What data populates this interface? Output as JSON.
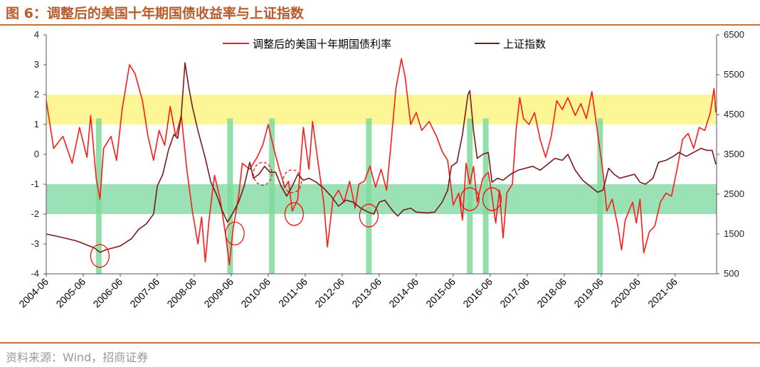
{
  "figure": {
    "title": "图 6：调整后的美国十年期国债收益率与上证指数",
    "source": "资料来源：Wind，招商证券"
  },
  "chart_data": {
    "type": "line",
    "x_ticks": [
      "2004-06",
      "2005-06",
      "2006-06",
      "2007-06",
      "2008-06",
      "2009-06",
      "2010-06",
      "2011-06",
      "2012-06",
      "2013-06",
      "2014-06",
      "2015-06",
      "2016-06",
      "2017-06",
      "2018-06",
      "2019-06",
      "2020-06",
      "2021-06"
    ],
    "y_left": {
      "ticks": [
        "4",
        "3",
        "2",
        "1",
        "0",
        "-1",
        "-2",
        "-3",
        "-4"
      ],
      "range": [
        -4,
        4
      ]
    },
    "y_right": {
      "ticks": [
        "6500",
        "5500",
        "4500",
        "3500",
        "2500",
        "1500",
        "500"
      ],
      "range": [
        500,
        6500
      ]
    },
    "legend": "top-center",
    "series": [
      {
        "name": "调整后的美国十年期国债利率",
        "axis": "left",
        "color": "#ff1a1a",
        "points": [
          [
            2004.0,
            1.8
          ],
          [
            2004.2,
            0.2
          ],
          [
            2004.45,
            0.6
          ],
          [
            2004.7,
            -0.3
          ],
          [
            2004.9,
            0.9
          ],
          [
            2005.1,
            -0.1
          ],
          [
            2005.2,
            1.3
          ],
          [
            2005.35,
            -0.8
          ],
          [
            2005.45,
            -1.5
          ],
          [
            2005.55,
            0.2
          ],
          [
            2005.75,
            0.6
          ],
          [
            2005.9,
            -0.2
          ],
          [
            2006.05,
            1.5
          ],
          [
            2006.25,
            3.0
          ],
          [
            2006.4,
            2.7
          ],
          [
            2006.6,
            1.8
          ],
          [
            2006.75,
            0.6
          ],
          [
            2006.9,
            -0.2
          ],
          [
            2007.05,
            0.8
          ],
          [
            2007.2,
            0.3
          ],
          [
            2007.35,
            1.6
          ],
          [
            2007.5,
            0.6
          ],
          [
            2007.65,
            1.3
          ],
          [
            2007.8,
            -0.5
          ],
          [
            2007.95,
            -1.9
          ],
          [
            2008.1,
            -3.0
          ],
          [
            2008.2,
            -2.1
          ],
          [
            2008.3,
            -3.6
          ],
          [
            2008.4,
            -2.2
          ],
          [
            2008.55,
            -0.7
          ],
          [
            2008.7,
            -1.5
          ],
          [
            2008.85,
            -2.7
          ],
          [
            2008.95,
            -3.7
          ],
          [
            2009.05,
            -2.5
          ],
          [
            2009.2,
            -1.4
          ],
          [
            2009.3,
            -0.3
          ],
          [
            2009.5,
            -0.5
          ],
          [
            2009.7,
            -0.1
          ],
          [
            2009.85,
            0.3
          ],
          [
            2010.0,
            1.0
          ],
          [
            2010.15,
            0.2
          ],
          [
            2010.3,
            -0.5
          ],
          [
            2010.45,
            -1.1
          ],
          [
            2010.55,
            -0.9
          ],
          [
            2010.65,
            -1.9
          ],
          [
            2010.8,
            -1.5
          ],
          [
            2010.95,
            0.9
          ],
          [
            2011.1,
            -0.5
          ],
          [
            2011.2,
            1.1
          ],
          [
            2011.35,
            -0.3
          ],
          [
            2011.5,
            -1.6
          ],
          [
            2011.6,
            -3.1
          ],
          [
            2011.75,
            -1.5
          ],
          [
            2011.9,
            -1.2
          ],
          [
            2012.05,
            -1.6
          ],
          [
            2012.2,
            -0.9
          ],
          [
            2012.35,
            -1.8
          ],
          [
            2012.45,
            -1.0
          ],
          [
            2012.6,
            -0.9
          ],
          [
            2012.75,
            -0.4
          ],
          [
            2012.9,
            -1.1
          ],
          [
            2013.05,
            -0.5
          ],
          [
            2013.2,
            -1.2
          ],
          [
            2013.3,
            0.1
          ],
          [
            2013.45,
            2.2
          ],
          [
            2013.6,
            3.2
          ],
          [
            2013.7,
            2.6
          ],
          [
            2013.85,
            1.0
          ],
          [
            2014.0,
            1.4
          ],
          [
            2014.15,
            0.8
          ],
          [
            2014.35,
            1.1
          ],
          [
            2014.55,
            0.6
          ],
          [
            2014.7,
            0.1
          ],
          [
            2014.85,
            -0.2
          ],
          [
            2015.0,
            -1.7
          ],
          [
            2015.15,
            -1.3
          ],
          [
            2015.25,
            -2.2
          ],
          [
            2015.35,
            -0.3
          ],
          [
            2015.45,
            -1.0
          ],
          [
            2015.55,
            -0.4
          ],
          [
            2015.65,
            -1.6
          ],
          [
            2015.8,
            -0.8
          ],
          [
            2015.95,
            -0.6
          ],
          [
            2016.05,
            -1.4
          ],
          [
            2016.15,
            -2.3
          ],
          [
            2016.25,
            -1.2
          ],
          [
            2016.35,
            -2.8
          ],
          [
            2016.45,
            -1.3
          ],
          [
            2016.6,
            -1.0
          ],
          [
            2016.7,
            0.8
          ],
          [
            2016.8,
            1.9
          ],
          [
            2016.9,
            1.2
          ],
          [
            2017.05,
            1.0
          ],
          [
            2017.2,
            1.4
          ],
          [
            2017.35,
            0.5
          ],
          [
            2017.5,
            -0.1
          ],
          [
            2017.65,
            0.6
          ],
          [
            2017.8,
            1.8
          ],
          [
            2017.95,
            1.5
          ],
          [
            2018.1,
            1.9
          ],
          [
            2018.3,
            1.3
          ],
          [
            2018.45,
            1.7
          ],
          [
            2018.6,
            1.2
          ],
          [
            2018.75,
            2.1
          ],
          [
            2018.85,
            1.2
          ],
          [
            2018.95,
            0.3
          ],
          [
            2019.05,
            -0.6
          ],
          [
            2019.15,
            -1.9
          ],
          [
            2019.3,
            -1.5
          ],
          [
            2019.45,
            -2.4
          ],
          [
            2019.55,
            -3.2
          ],
          [
            2019.65,
            -2.2
          ],
          [
            2019.75,
            -1.9
          ],
          [
            2019.85,
            -1.6
          ],
          [
            2019.95,
            -2.3
          ],
          [
            2020.05,
            -1.5
          ],
          [
            2020.15,
            -3.3
          ],
          [
            2020.3,
            -2.6
          ],
          [
            2020.45,
            -2.4
          ],
          [
            2020.6,
            -1.6
          ],
          [
            2020.75,
            -1.3
          ],
          [
            2020.9,
            -1.4
          ],
          [
            2021.05,
            -0.5
          ],
          [
            2021.2,
            0.5
          ],
          [
            2021.35,
            0.7
          ],
          [
            2021.5,
            0.2
          ],
          [
            2021.65,
            0.9
          ],
          [
            2021.8,
            0.8
          ],
          [
            2021.95,
            1.4
          ],
          [
            2022.05,
            2.2
          ],
          [
            2022.1,
            1.4
          ]
        ]
      },
      {
        "name": "上证指数",
        "axis": "right",
        "color": "#7a1a1a",
        "points": [
          [
            2004.0,
            1500
          ],
          [
            2004.4,
            1420
          ],
          [
            2004.8,
            1330
          ],
          [
            2005.0,
            1260
          ],
          [
            2005.3,
            1150
          ],
          [
            2005.45,
            1040
          ],
          [
            2005.6,
            1100
          ],
          [
            2005.8,
            1150
          ],
          [
            2006.0,
            1200
          ],
          [
            2006.3,
            1380
          ],
          [
            2006.5,
            1620
          ],
          [
            2006.7,
            1750
          ],
          [
            2006.9,
            2000
          ],
          [
            2007.0,
            2700
          ],
          [
            2007.15,
            3000
          ],
          [
            2007.3,
            3600
          ],
          [
            2007.45,
            4000
          ],
          [
            2007.55,
            3900
          ],
          [
            2007.65,
            4500
          ],
          [
            2007.75,
            5800
          ],
          [
            2007.85,
            5200
          ],
          [
            2007.95,
            4700
          ],
          [
            2008.1,
            4100
          ],
          [
            2008.3,
            3400
          ],
          [
            2008.45,
            2800
          ],
          [
            2008.6,
            2500
          ],
          [
            2008.75,
            2100
          ],
          [
            2008.9,
            1800
          ],
          [
            2009.0,
            1950
          ],
          [
            2009.2,
            2300
          ],
          [
            2009.35,
            2700
          ],
          [
            2009.5,
            3300
          ],
          [
            2009.6,
            2900
          ],
          [
            2009.75,
            3000
          ],
          [
            2009.9,
            3200
          ],
          [
            2010.05,
            3050
          ],
          [
            2010.2,
            3050
          ],
          [
            2010.35,
            2700
          ],
          [
            2010.5,
            2450
          ],
          [
            2010.65,
            2700
          ],
          [
            2010.8,
            3000
          ],
          [
            2010.95,
            2850
          ],
          [
            2011.1,
            2900
          ],
          [
            2011.3,
            2800
          ],
          [
            2011.5,
            2650
          ],
          [
            2011.7,
            2450
          ],
          [
            2011.9,
            2200
          ],
          [
            2012.1,
            2350
          ],
          [
            2012.3,
            2300
          ],
          [
            2012.5,
            2150
          ],
          [
            2012.7,
            2050
          ],
          [
            2012.85,
            2000
          ],
          [
            2013.0,
            2300
          ],
          [
            2013.15,
            2350
          ],
          [
            2013.35,
            2100
          ],
          [
            2013.5,
            1950
          ],
          [
            2013.65,
            2100
          ],
          [
            2013.85,
            2150
          ],
          [
            2014.0,
            2050
          ],
          [
            2014.3,
            2030
          ],
          [
            2014.5,
            2050
          ],
          [
            2014.7,
            2300
          ],
          [
            2014.85,
            2600
          ],
          [
            2014.95,
            3200
          ],
          [
            2015.1,
            3300
          ],
          [
            2015.25,
            4000
          ],
          [
            2015.4,
            5000
          ],
          [
            2015.45,
            5100
          ],
          [
            2015.55,
            4100
          ],
          [
            2015.65,
            3400
          ],
          [
            2015.8,
            3500
          ],
          [
            2015.95,
            3550
          ],
          [
            2016.05,
            2800
          ],
          [
            2016.2,
            2900
          ],
          [
            2016.35,
            2850
          ],
          [
            2016.55,
            3000
          ],
          [
            2016.75,
            3100
          ],
          [
            2016.95,
            3150
          ],
          [
            2017.15,
            3200
          ],
          [
            2017.35,
            3100
          ],
          [
            2017.55,
            3250
          ],
          [
            2017.75,
            3400
          ],
          [
            2017.95,
            3350
          ],
          [
            2018.1,
            3500
          ],
          [
            2018.3,
            3100
          ],
          [
            2018.5,
            2850
          ],
          [
            2018.7,
            2700
          ],
          [
            2018.9,
            2550
          ],
          [
            2019.05,
            2600
          ],
          [
            2019.2,
            3150
          ],
          [
            2019.35,
            3000
          ],
          [
            2019.5,
            2900
          ],
          [
            2019.7,
            2950
          ],
          [
            2019.9,
            3000
          ],
          [
            2020.05,
            2800
          ],
          [
            2020.2,
            2750
          ],
          [
            2020.4,
            2900
          ],
          [
            2020.55,
            3300
          ],
          [
            2020.75,
            3350
          ],
          [
            2020.95,
            3450
          ],
          [
            2021.1,
            3550
          ],
          [
            2021.3,
            3450
          ],
          [
            2021.5,
            3550
          ],
          [
            2021.7,
            3650
          ],
          [
            2021.85,
            3600
          ],
          [
            2022.0,
            3600
          ],
          [
            2022.1,
            3250
          ]
        ]
      }
    ],
    "bands": [
      {
        "axis": "left",
        "from": 1,
        "to": 2,
        "color": "#fbf584"
      },
      {
        "axis": "left",
        "from": -2,
        "to": -1,
        "color": "#88dca8"
      }
    ],
    "vertical_bars": [
      2005.42,
      2008.97,
      2010.1,
      2012.72,
      2015.45,
      2015.88,
      2018.97
    ],
    "circle_marks": [
      {
        "x": 2005.45,
        "y": -3.4,
        "style": "solid"
      },
      {
        "x": 2009.1,
        "y": -2.65,
        "style": "solid"
      },
      {
        "x": 2009.85,
        "y": -0.65,
        "style": "dashed"
      },
      {
        "x": 2010.65,
        "y": -0.9,
        "style": "dashed"
      },
      {
        "x": 2010.7,
        "y": -2.0,
        "style": "solid"
      },
      {
        "x": 2012.72,
        "y": -2.05,
        "style": "solid"
      },
      {
        "x": 2015.45,
        "y": -1.5,
        "style": "solid"
      },
      {
        "x": 2016.05,
        "y": -1.5,
        "style": "solid"
      }
    ]
  }
}
